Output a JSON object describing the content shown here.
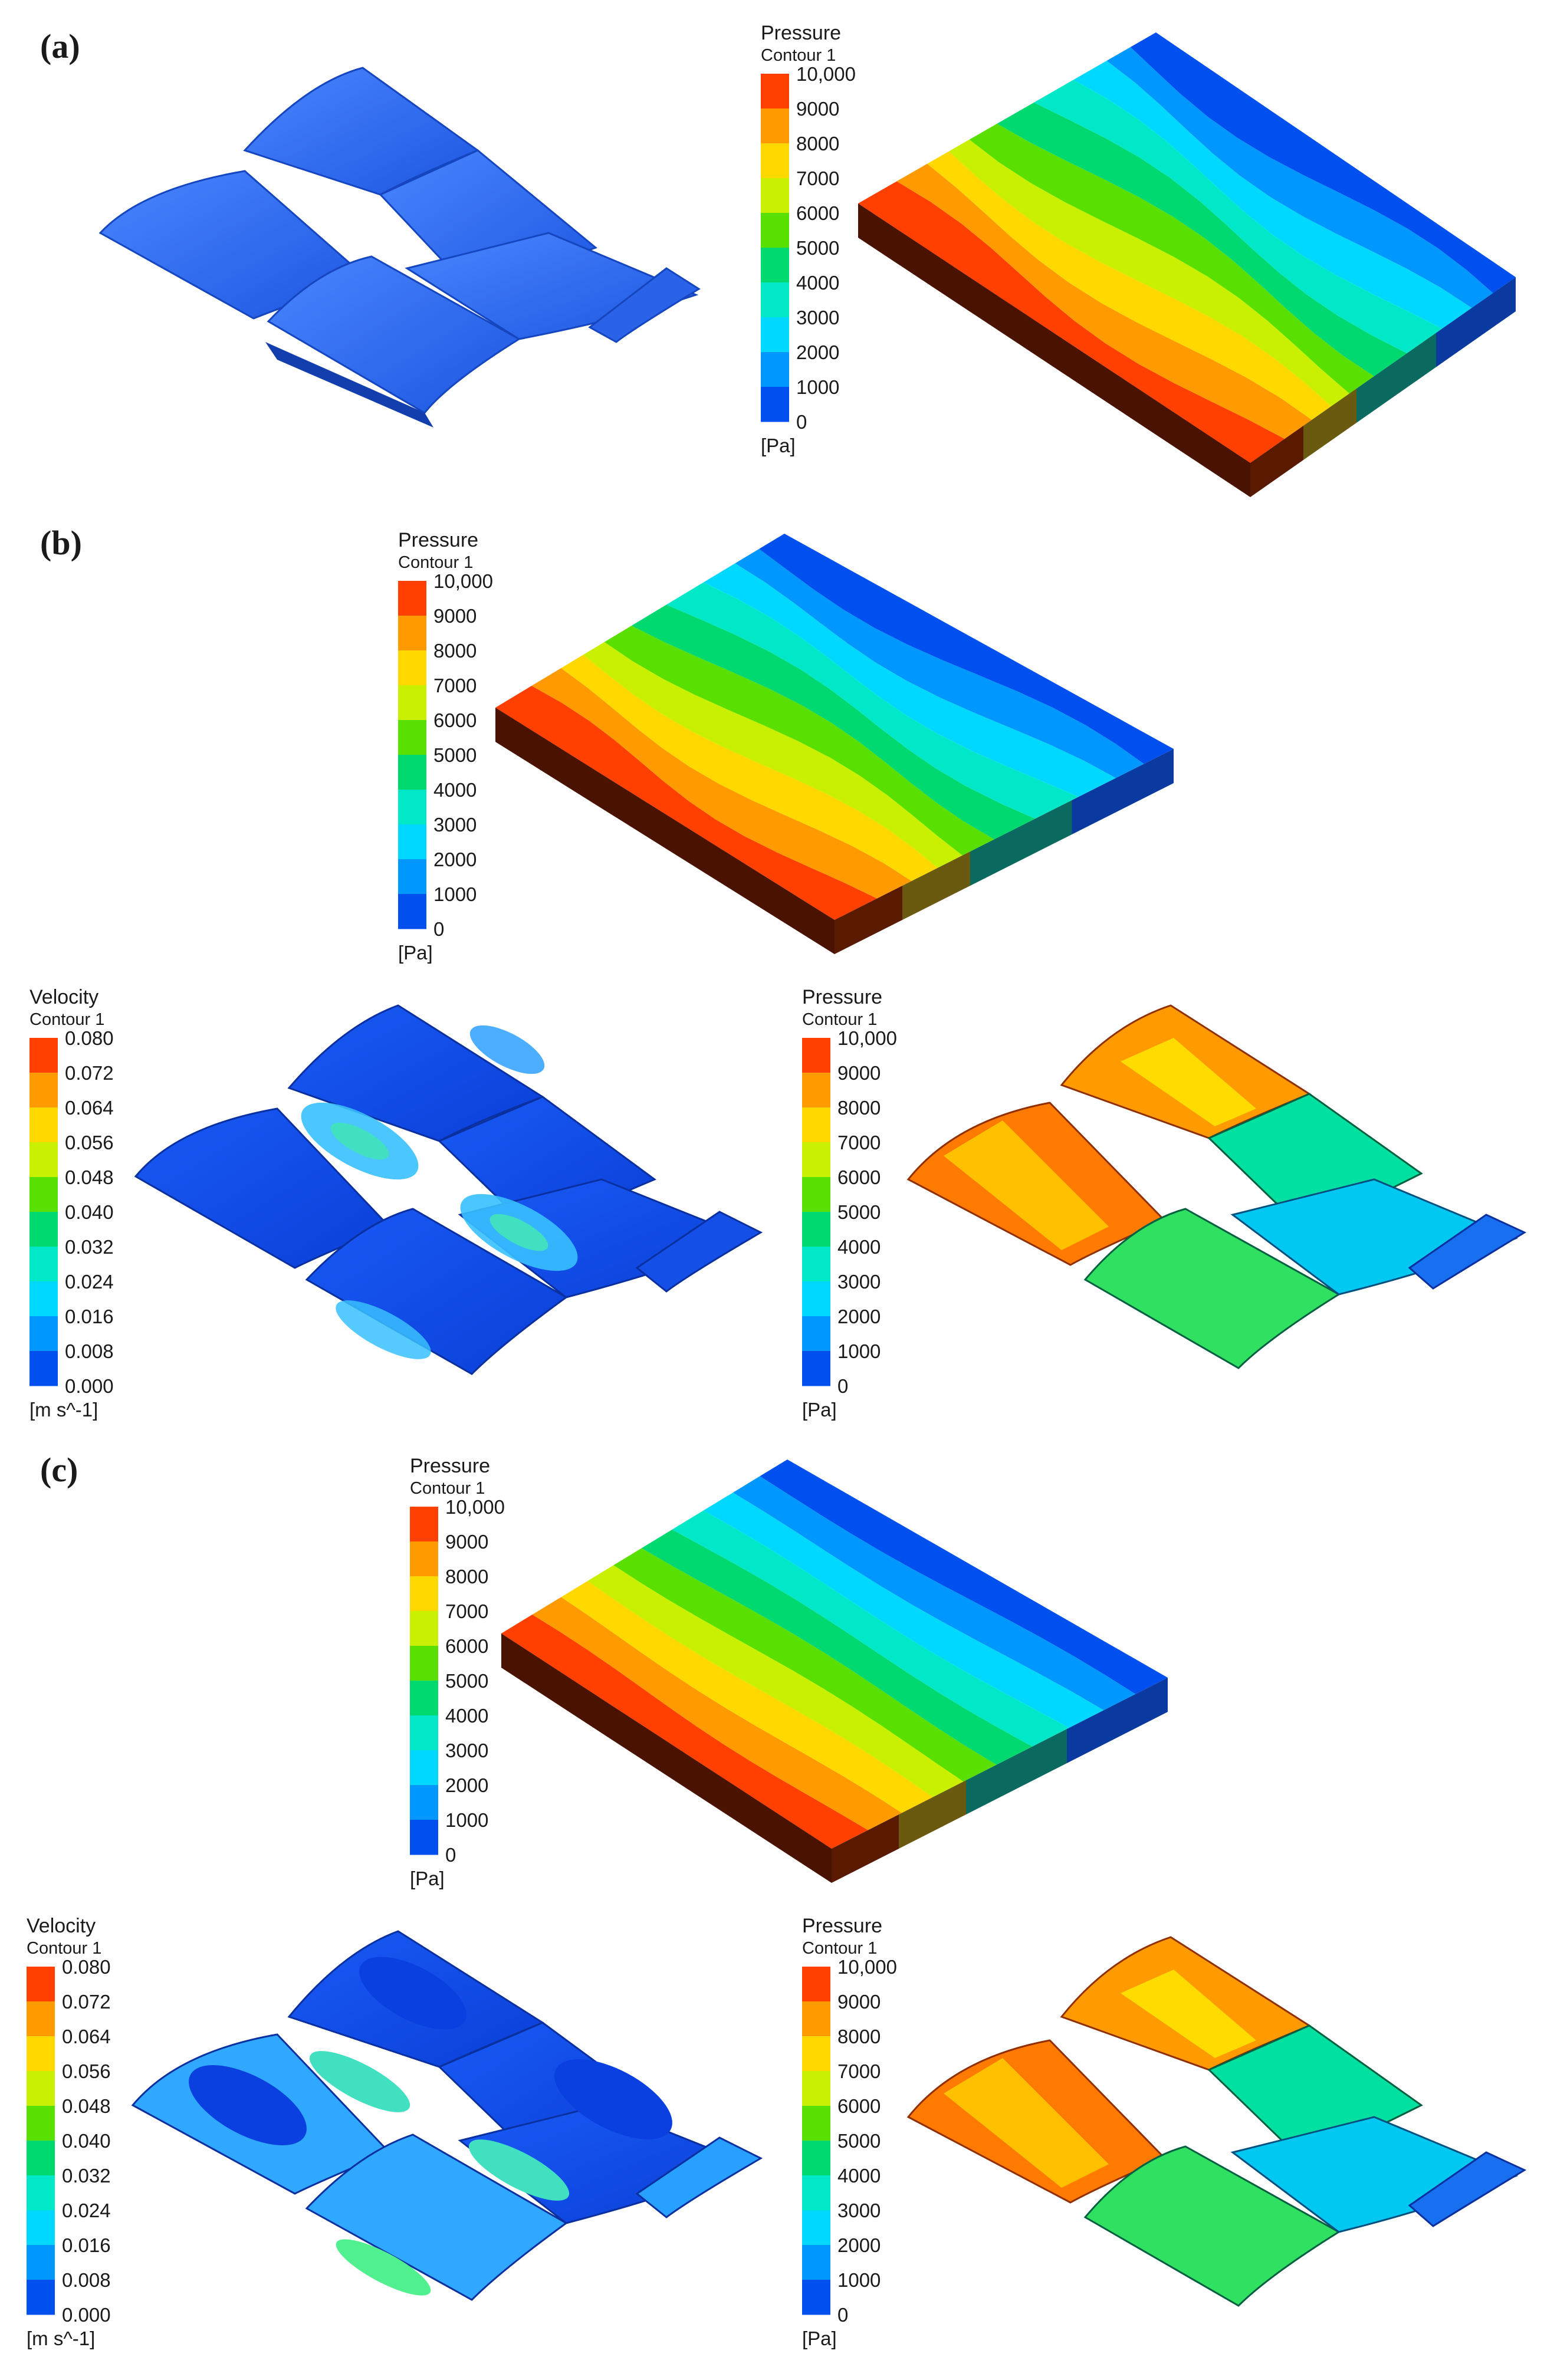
{
  "panels": {
    "a": "(a)",
    "b": "(b)",
    "c": "(c)"
  },
  "pressure_legend": {
    "title": "Pressure",
    "subtitle": "Contour 1",
    "ticks": [
      "10,000",
      "9000",
      "8000",
      "7000",
      "6000",
      "5000",
      "4000",
      "3000",
      "2000",
      "1000",
      "0"
    ],
    "unit": "[Pa]"
  },
  "velocity_legend": {
    "title": "Velocity",
    "subtitle": "Contour 1",
    "ticks": [
      "0.080",
      "0.072",
      "0.064",
      "0.056",
      "0.048",
      "0.040",
      "0.032",
      "0.024",
      "0.016",
      "0.008",
      "0.000"
    ],
    "unit": "[m s^-1]"
  },
  "colors": {
    "bands_top_to_bottom": [
      "#ff4000",
      "#ff9a00",
      "#ffd800",
      "#c8f000",
      "#5ae000",
      "#00d870",
      "#00e8c8",
      "#00d8ff",
      "#0098ff",
      "#0050f0"
    ],
    "blade_blue": "#2f6ff0",
    "slab_side": "#4a1200"
  }
}
